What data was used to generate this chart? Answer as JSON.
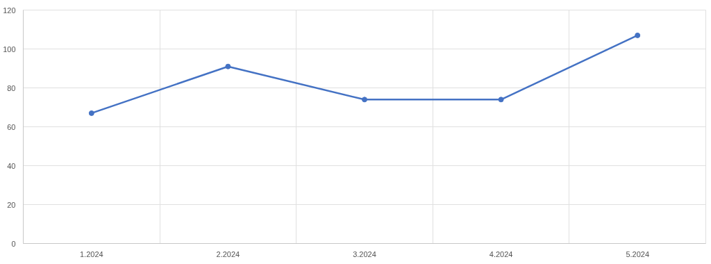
{
  "chart_data": {
    "type": "line",
    "categories": [
      "1.2024",
      "2.2024",
      "3.2024",
      "4.2024",
      "5.2024"
    ],
    "series": [
      {
        "color": "#4472c4",
        "values": [
          67,
          91,
          74,
          74,
          107
        ]
      }
    ],
    "ylim": [
      0,
      120
    ],
    "yticks": [
      0,
      20,
      40,
      60,
      80,
      100,
      120
    ],
    "grid": true,
    "marker": "circle",
    "line_style": "solid"
  }
}
